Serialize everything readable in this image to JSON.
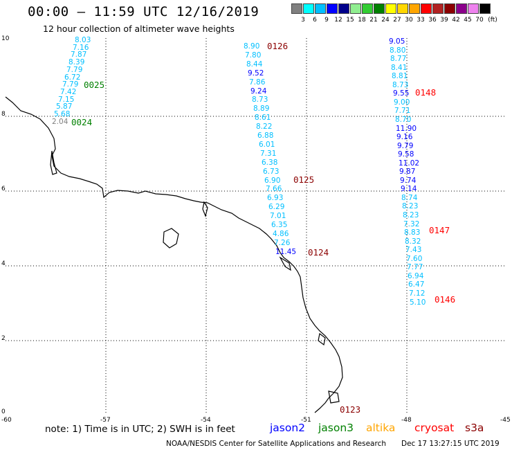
{
  "header": {
    "title": "00:00 – 11:59 UTC 12/16/2019",
    "subtitle": "12 hour collection of altimeter wave heights"
  },
  "colorbar": {
    "labels": [
      "3",
      "6",
      "9",
      "12",
      "15",
      "18",
      "21",
      "24",
      "27",
      "30",
      "33",
      "36",
      "39",
      "42",
      "45",
      "70"
    ],
    "unit": "(ft)",
    "colors": [
      "#808080",
      "#00ffff",
      "#00bfff",
      "#0000ff",
      "#00008b",
      "#90ee90",
      "#32cd32",
      "#008000",
      "#ffff00",
      "#ffd700",
      "#ffa500",
      "#ff0000",
      "#b22222",
      "#8b0000",
      "#8b008b",
      "#ee82ee",
      "#000000"
    ]
  },
  "axes": {
    "y_ticks": [
      "10",
      "8",
      "6",
      "4",
      "2",
      "0"
    ],
    "x_ticks": [
      "-60",
      "-57",
      "-54",
      "-51",
      "-48",
      "-45"
    ]
  },
  "tracks": [
    {
      "values": [
        {
          "t": "8.03",
          "c": "#00bfff"
        },
        {
          "t": "7.16",
          "c": "#00bfff"
        },
        {
          "t": "7.87",
          "c": "#00bfff"
        },
        {
          "t": "8.39",
          "c": "#00bfff"
        },
        {
          "t": "7.79",
          "c": "#00bfff"
        },
        {
          "t": "6.72",
          "c": "#00bfff"
        },
        {
          "t": "7.79",
          "c": "#00bfff"
        },
        {
          "t": "7.42",
          "c": "#00bfff"
        },
        {
          "t": "7.15",
          "c": "#00bfff"
        },
        {
          "t": "5.87",
          "c": "#00bfff"
        },
        {
          "t": "5.68",
          "c": "#00bfff"
        },
        {
          "t": "2.04",
          "c": "#808080"
        }
      ]
    },
    {
      "values": [
        {
          "t": "8.90",
          "c": "#00bfff"
        },
        {
          "t": "7.80",
          "c": "#00bfff"
        },
        {
          "t": "8.44",
          "c": "#00bfff"
        },
        {
          "t": "9.52",
          "c": "#0000ff"
        },
        {
          "t": "7.86",
          "c": "#00bfff"
        },
        {
          "t": "9.24",
          "c": "#0000ff"
        },
        {
          "t": "8.73",
          "c": "#00bfff"
        },
        {
          "t": "8.89",
          "c": "#00bfff"
        },
        {
          "t": "8.61",
          "c": "#00bfff"
        },
        {
          "t": "8.22",
          "c": "#00bfff"
        },
        {
          "t": "6.88",
          "c": "#00bfff"
        },
        {
          "t": "6.01",
          "c": "#00bfff"
        },
        {
          "t": "7.31",
          "c": "#00bfff"
        },
        {
          "t": "6.38",
          "c": "#00bfff"
        },
        {
          "t": "6.73",
          "c": "#00bfff"
        },
        {
          "t": "6.90",
          "c": "#00bfff"
        },
        {
          "t": "7.66",
          "c": "#00bfff"
        },
        {
          "t": "6.93",
          "c": "#00bfff"
        },
        {
          "t": "6.29",
          "c": "#00bfff"
        },
        {
          "t": "7.01",
          "c": "#00bfff"
        },
        {
          "t": "6.35",
          "c": "#00bfff"
        },
        {
          "t": "4.86",
          "c": "#00bfff"
        },
        {
          "t": "7.26",
          "c": "#00bfff"
        },
        {
          "t": "11.45",
          "c": "#0000ff"
        }
      ]
    },
    {
      "values": [
        {
          "t": "9.05",
          "c": "#0000ff"
        },
        {
          "t": "8.80",
          "c": "#00bfff"
        },
        {
          "t": "8.77",
          "c": "#00bfff"
        },
        {
          "t": "8.41",
          "c": "#00bfff"
        },
        {
          "t": "8.81",
          "c": "#00bfff"
        },
        {
          "t": "8.73",
          "c": "#00bfff"
        },
        {
          "t": "9.55",
          "c": "#0000ff"
        },
        {
          "t": "9.00",
          "c": "#00bfff"
        },
        {
          "t": "7.71",
          "c": "#00bfff"
        },
        {
          "t": "8.70",
          "c": "#00bfff"
        },
        {
          "t": "11.90",
          "c": "#0000ff"
        },
        {
          "t": "9.16",
          "c": "#0000ff"
        },
        {
          "t": "9.79",
          "c": "#0000ff"
        },
        {
          "t": "9.58",
          "c": "#0000ff"
        },
        {
          "t": "11.02",
          "c": "#0000ff"
        },
        {
          "t": "9.87",
          "c": "#0000ff"
        },
        {
          "t": "9.74",
          "c": "#0000ff"
        },
        {
          "t": "9.14",
          "c": "#0000ff"
        },
        {
          "t": "8.74",
          "c": "#00bfff"
        },
        {
          "t": "8.23",
          "c": "#00bfff"
        },
        {
          "t": "8.23",
          "c": "#00bfff"
        },
        {
          "t": "7.32",
          "c": "#00bfff"
        },
        {
          "t": "8.83",
          "c": "#00bfff"
        },
        {
          "t": "8.32",
          "c": "#00bfff"
        },
        {
          "t": "7.43",
          "c": "#00bfff"
        },
        {
          "t": "7.60",
          "c": "#00bfff"
        },
        {
          "t": "7.77",
          "c": "#00bfff"
        },
        {
          "t": "6.94",
          "c": "#00bfff"
        },
        {
          "t": "6.47",
          "c": "#00bfff"
        },
        {
          "t": "7.12",
          "c": "#00bfff"
        },
        {
          "t": "5.10",
          "c": "#00bfff"
        }
      ]
    }
  ],
  "pass_labels": [
    {
      "t": "0025",
      "c": "#008000"
    },
    {
      "t": "0024",
      "c": "#008000"
    },
    {
      "t": "0126",
      "c": "#8b0000"
    },
    {
      "t": "0125",
      "c": "#8b0000"
    },
    {
      "t": "0124",
      "c": "#8b0000"
    },
    {
      "t": "0123",
      "c": "#8b0000"
    },
    {
      "t": "0148",
      "c": "#ff0000"
    },
    {
      "t": "0147",
      "c": "#ff0000"
    },
    {
      "t": "0146",
      "c": "#ff0000"
    }
  ],
  "note": "note: 1) Time is in UTC; 2) SWH is in feet",
  "legend": [
    {
      "name": "jason2",
      "color": "#0000ff"
    },
    {
      "name": "jason3",
      "color": "#008000"
    },
    {
      "name": "altika",
      "color": "#ffa500"
    },
    {
      "name": "cryosat",
      "color": "#ff0000"
    },
    {
      "name": "s3a",
      "color": "#8b0000"
    }
  ],
  "footer": {
    "center": "NOAA/NESDIS Center for Satellite Applications and Research",
    "timestamp": "Dec 17 13:27:15 UTC 2019"
  }
}
